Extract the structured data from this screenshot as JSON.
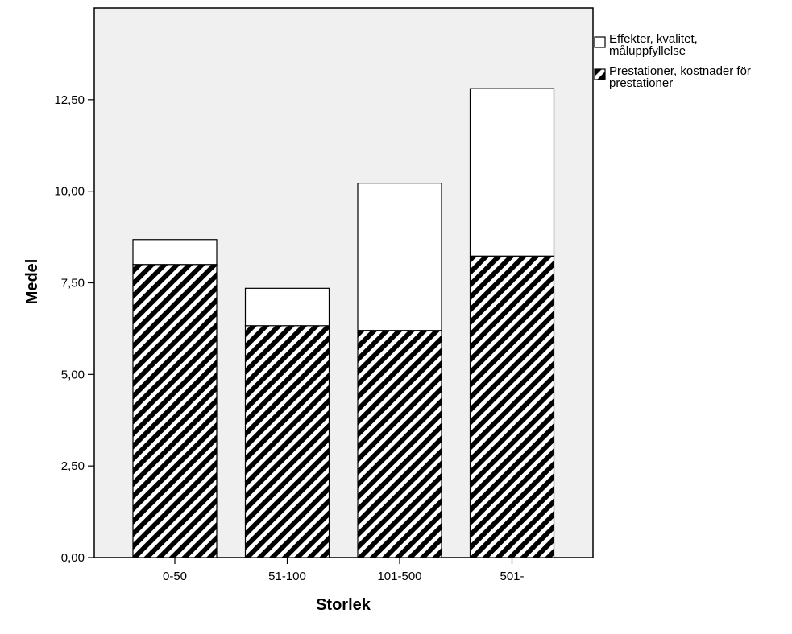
{
  "chart_data": {
    "type": "bar",
    "stacked": true,
    "title": "",
    "xlabel": "Storlek",
    "ylabel": "Medel",
    "categories": [
      "0-50",
      "51-100",
      "101-500",
      "501-"
    ],
    "ylim": [
      0,
      15
    ],
    "yticks": [
      0,
      2.5,
      5,
      7.5,
      10,
      12.5
    ],
    "ytick_labels": [
      "0,00",
      "2,50",
      "5,00",
      "7,50",
      "10,00",
      "12,50"
    ],
    "grid": false,
    "legend_position": "right",
    "series": [
      {
        "name": "Prestationer, kostnader för prestationer",
        "legend_lines": [
          "Prestationer, kostnader för",
          "prestationer"
        ],
        "values": [
          8.0,
          6.33,
          6.2,
          8.23
        ],
        "fill": "hatched",
        "color": "#000000"
      },
      {
        "name": "Effekter, kvalitet, måluppfyllelse",
        "legend_lines": [
          "Effekter, kvalitet,",
          "måluppfyllelse"
        ],
        "values": [
          0.68,
          1.02,
          4.02,
          4.57
        ],
        "fill": "solid",
        "color": "#ffffff"
      }
    ],
    "colors": {
      "plot_background": "#f0f0f0",
      "outline": "#000000"
    }
  }
}
